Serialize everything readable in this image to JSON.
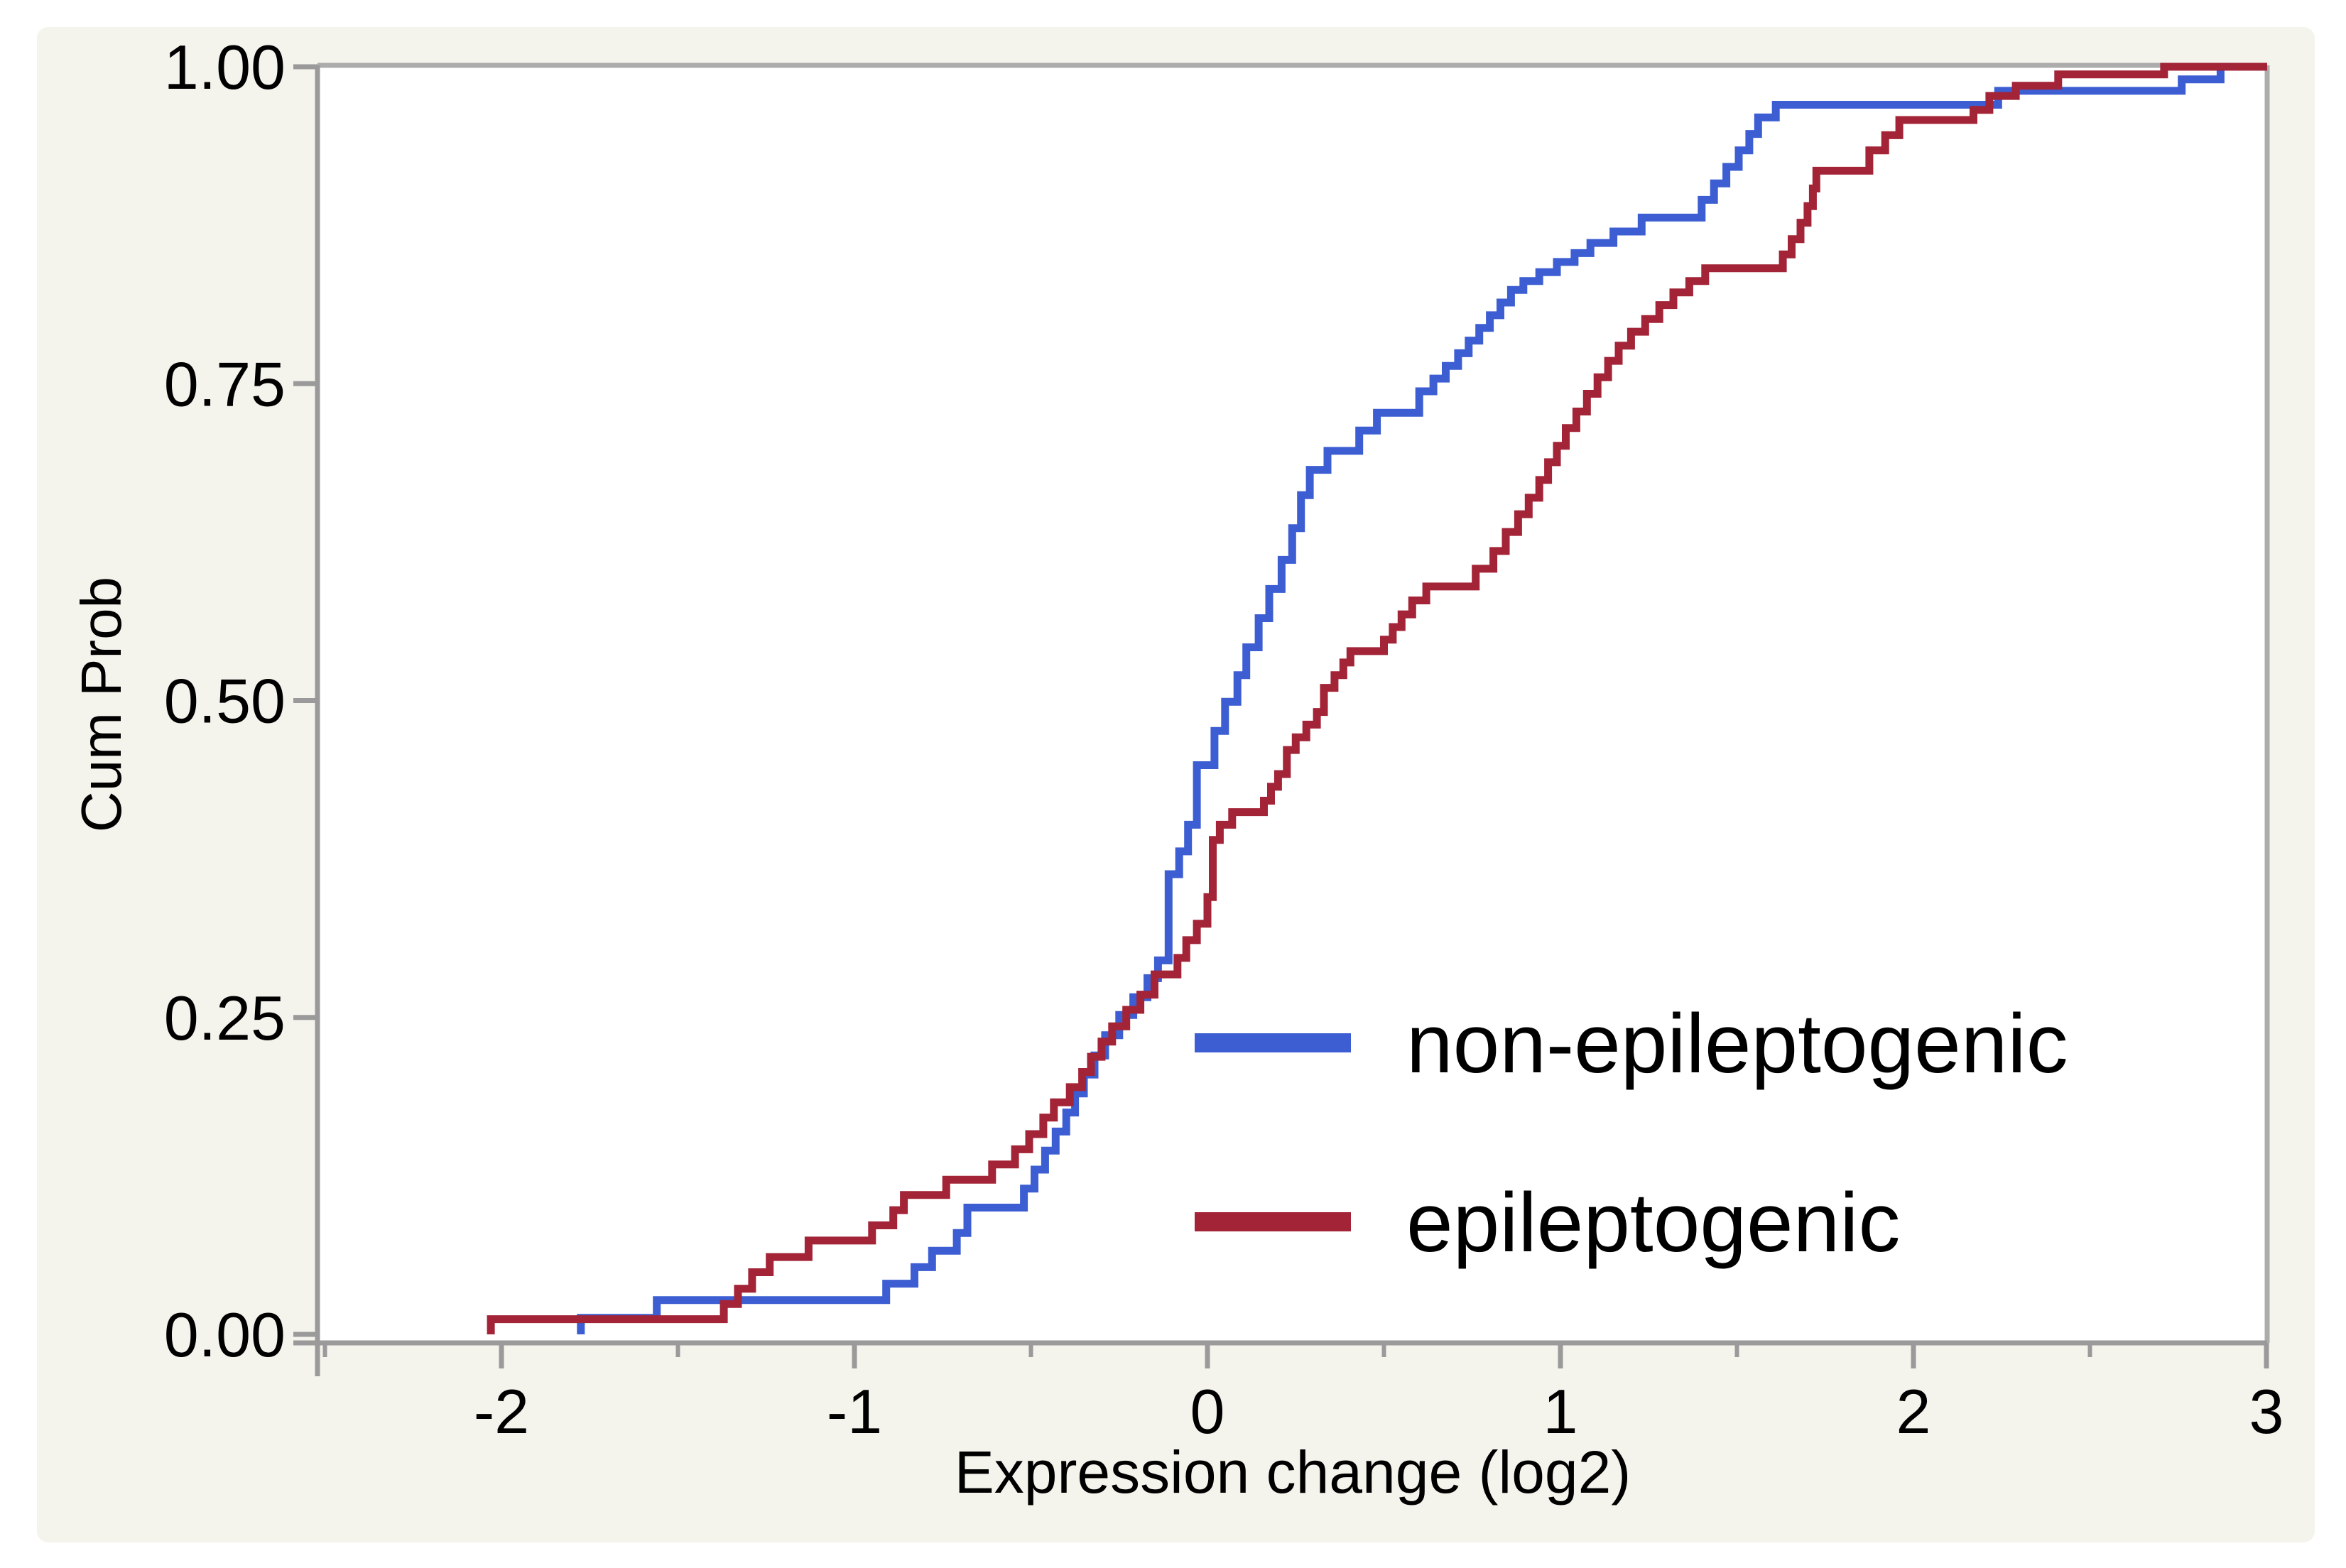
{
  "chart_data": {
    "type": "line",
    "subtype": "step-ecdf",
    "title": "",
    "xlabel": "Expression change (log2)",
    "ylabel": "Cum Prob",
    "xlim": [
      -2.52,
      3.002
    ],
    "ylim": [
      0,
      1
    ],
    "grid": false,
    "legend_position": "inside-lower-right",
    "x_ticks_major": [
      -2,
      -1,
      0,
      1,
      2,
      3
    ],
    "x_tick_labels": [
      "-2",
      "-1",
      "0",
      "1",
      "2",
      "3"
    ],
    "x_ticks_minor": [
      -2.5,
      -1.5,
      -0.5,
      0.5,
      1.5,
      2.5
    ],
    "y_ticks": [
      0,
      0.25,
      0.5,
      0.75,
      1
    ],
    "y_tick_labels": [
      "0.00",
      "0.25",
      "0.50",
      "0.75",
      "1.00"
    ],
    "series": [
      {
        "name": "non-epileptogenic",
        "color": "#3C5ED2",
        "steps": [
          [
            -1.775,
            0.013
          ],
          [
            -1.56,
            0.027
          ],
          [
            -0.91,
            0.04
          ],
          [
            -0.83,
            0.053
          ],
          [
            -0.78,
            0.066
          ],
          [
            -0.71,
            0.08
          ],
          [
            -0.68,
            0.1
          ],
          [
            -0.52,
            0.115
          ],
          [
            -0.49,
            0.13
          ],
          [
            -0.46,
            0.145
          ],
          [
            -0.43,
            0.16
          ],
          [
            -0.4,
            0.175
          ],
          [
            -0.375,
            0.19
          ],
          [
            -0.35,
            0.205
          ],
          [
            -0.32,
            0.22
          ],
          [
            -0.29,
            0.236
          ],
          [
            -0.25,
            0.252
          ],
          [
            -0.21,
            0.266
          ],
          [
            -0.17,
            0.281
          ],
          [
            -0.14,
            0.295
          ],
          [
            -0.11,
            0.363
          ],
          [
            -0.08,
            0.381
          ],
          [
            -0.055,
            0.402
          ],
          [
            -0.03,
            0.449
          ],
          [
            0.02,
            0.476
          ],
          [
            0.05,
            0.499
          ],
          [
            0.085,
            0.52
          ],
          [
            0.11,
            0.542
          ],
          [
            0.145,
            0.565
          ],
          [
            0.175,
            0.588
          ],
          [
            0.21,
            0.611
          ],
          [
            0.24,
            0.636
          ],
          [
            0.265,
            0.662
          ],
          [
            0.29,
            0.682
          ],
          [
            0.34,
            0.697
          ],
          [
            0.43,
            0.713
          ],
          [
            0.48,
            0.727
          ],
          [
            0.6,
            0.744
          ],
          [
            0.64,
            0.754
          ],
          [
            0.675,
            0.764
          ],
          [
            0.71,
            0.774
          ],
          [
            0.74,
            0.784
          ],
          [
            0.77,
            0.794
          ],
          [
            0.8,
            0.804
          ],
          [
            0.83,
            0.814
          ],
          [
            0.86,
            0.824
          ],
          [
            0.895,
            0.831
          ],
          [
            0.94,
            0.838
          ],
          [
            0.99,
            0.846
          ],
          [
            1.04,
            0.853
          ],
          [
            1.085,
            0.861
          ],
          [
            1.15,
            0.87
          ],
          [
            1.23,
            0.881
          ],
          [
            1.4,
            0.895
          ],
          [
            1.435,
            0.908
          ],
          [
            1.47,
            0.921
          ],
          [
            1.505,
            0.934
          ],
          [
            1.535,
            0.947
          ],
          [
            1.56,
            0.96
          ],
          [
            1.61,
            0.97
          ],
          [
            2.24,
            0.981
          ],
          [
            2.76,
            0.99
          ],
          [
            2.87,
            1.0
          ]
        ]
      },
      {
        "name": "epileptogenic",
        "color": "#A32337",
        "steps": [
          [
            -2.03,
            0.012
          ],
          [
            -1.37,
            0.024
          ],
          [
            -1.33,
            0.036
          ],
          [
            -1.29,
            0.049
          ],
          [
            -1.24,
            0.061
          ],
          [
            -1.13,
            0.074
          ],
          [
            -0.95,
            0.086
          ],
          [
            -0.89,
            0.098
          ],
          [
            -0.86,
            0.11
          ],
          [
            -0.74,
            0.122
          ],
          [
            -0.61,
            0.134
          ],
          [
            -0.545,
            0.146
          ],
          [
            -0.505,
            0.158
          ],
          [
            -0.465,
            0.171
          ],
          [
            -0.435,
            0.183
          ],
          [
            -0.39,
            0.195
          ],
          [
            -0.355,
            0.207
          ],
          [
            -0.33,
            0.219
          ],
          [
            -0.3,
            0.231
          ],
          [
            -0.27,
            0.243
          ],
          [
            -0.23,
            0.256
          ],
          [
            -0.19,
            0.268
          ],
          [
            -0.15,
            0.284
          ],
          [
            -0.085,
            0.297
          ],
          [
            -0.06,
            0.311
          ],
          [
            -0.03,
            0.324
          ],
          [
            0.0,
            0.345
          ],
          [
            0.015,
            0.39
          ],
          [
            0.035,
            0.402
          ],
          [
            0.07,
            0.412
          ],
          [
            0.16,
            0.421
          ],
          [
            0.18,
            0.432
          ],
          [
            0.2,
            0.442
          ],
          [
            0.225,
            0.461
          ],
          [
            0.25,
            0.471
          ],
          [
            0.28,
            0.481
          ],
          [
            0.31,
            0.491
          ],
          [
            0.33,
            0.51
          ],
          [
            0.36,
            0.52
          ],
          [
            0.385,
            0.53
          ],
          [
            0.405,
            0.539
          ],
          [
            0.5,
            0.548
          ],
          [
            0.525,
            0.558
          ],
          [
            0.55,
            0.568
          ],
          [
            0.58,
            0.579
          ],
          [
            0.62,
            0.59
          ],
          [
            0.76,
            0.604
          ],
          [
            0.81,
            0.618
          ],
          [
            0.845,
            0.633
          ],
          [
            0.88,
            0.647
          ],
          [
            0.91,
            0.66
          ],
          [
            0.94,
            0.674
          ],
          [
            0.965,
            0.688
          ],
          [
            0.99,
            0.701
          ],
          [
            1.015,
            0.715
          ],
          [
            1.045,
            0.728
          ],
          [
            1.075,
            0.742
          ],
          [
            1.105,
            0.755
          ],
          [
            1.135,
            0.768
          ],
          [
            1.165,
            0.78
          ],
          [
            1.2,
            0.791
          ],
          [
            1.24,
            0.801
          ],
          [
            1.28,
            0.812
          ],
          [
            1.32,
            0.822
          ],
          [
            1.365,
            0.831
          ],
          [
            1.41,
            0.841
          ],
          [
            1.63,
            0.852
          ],
          [
            1.655,
            0.864
          ],
          [
            1.68,
            0.877
          ],
          [
            1.7,
            0.89
          ],
          [
            1.715,
            0.904
          ],
          [
            1.725,
            0.918
          ],
          [
            1.875,
            0.934
          ],
          [
            1.92,
            0.946
          ],
          [
            1.96,
            0.958
          ],
          [
            2.17,
            0.966
          ],
          [
            2.215,
            0.977
          ],
          [
            2.29,
            0.985
          ],
          [
            2.41,
            0.994
          ],
          [
            2.71,
            1.0
          ]
        ]
      }
    ]
  },
  "legend": {
    "items": [
      {
        "label": "non-epileptogenic",
        "color": "#3C5ED2"
      },
      {
        "label": "epileptogenic",
        "color": "#A32337"
      }
    ]
  },
  "colors": {
    "panel_background": "#F4F3EC",
    "plot_background": "#FFFFFF",
    "axis": "#9A9A9A",
    "border": "#ACACAC",
    "text": "#000000"
  }
}
